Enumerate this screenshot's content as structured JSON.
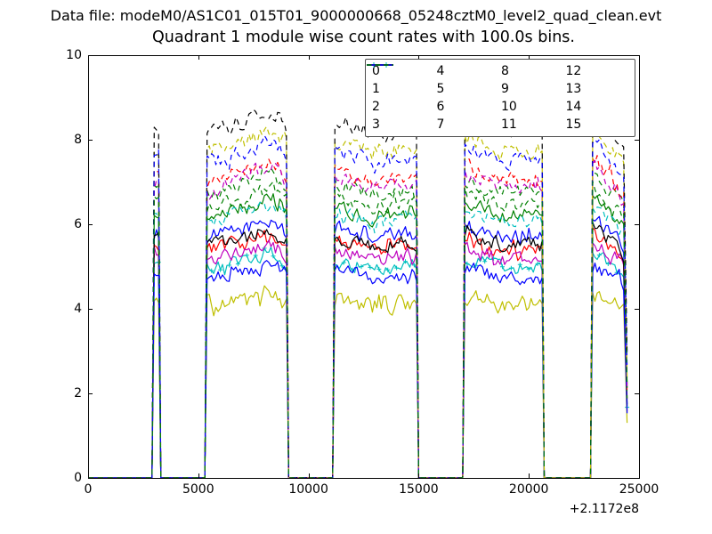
{
  "header": {
    "data_file": "Data file: modeM0/AS1C01_015T01_9000000668_05248cztM0_level2_quad_clean.evt"
  },
  "chart_data": {
    "type": "line",
    "title": "Quadrant 1 module wise count rates with 100.0s bins.",
    "xlabel": "",
    "ylabel": "",
    "xlim": [
      0,
      25000
    ],
    "ylim": [
      0,
      10
    ],
    "x_tick_labels": [
      "0",
      "5000",
      "10000",
      "15000",
      "20000",
      "25000"
    ],
    "y_tick_labels": [
      "0",
      "2",
      "4",
      "6",
      "8",
      "10"
    ],
    "x_offset_label": "+2.1172e8",
    "bin_size_label": "100.0s",
    "grid": false,
    "legend": {
      "location": "upper right",
      "columns": 4
    },
    "sample_step": 100,
    "on_intervals": [
      [
        2950,
        3250
      ],
      [
        5330,
        9010
      ],
      [
        11190,
        14940
      ],
      [
        17040,
        20640
      ],
      [
        22860,
        24420
      ]
    ],
    "interval_profiles": [
      [
        [
          0,
          1.0
        ],
        [
          1,
          1.0
        ]
      ],
      [
        [
          0,
          0.98
        ],
        [
          0.55,
          1.02
        ],
        [
          0.82,
          1.05
        ],
        [
          1,
          1.0
        ]
      ],
      [
        [
          0,
          1.02
        ],
        [
          0.45,
          0.98
        ],
        [
          1,
          1.0
        ]
      ],
      [
        [
          0,
          1.03
        ],
        [
          0.5,
          0.985
        ],
        [
          1,
          0.99
        ]
      ],
      [
        [
          0,
          1.06
        ],
        [
          0.5,
          1.0
        ],
        [
          1,
          0.93
        ]
      ]
    ],
    "end_cut": {
      "x": 24460,
      "level_fraction": 0.3
    },
    "series": [
      {
        "label": "0",
        "color": "#0000ff",
        "style": "solid",
        "level": 5.8,
        "noise": 0.26
      },
      {
        "label": "1",
        "color": "#008000",
        "style": "solid",
        "level": 6.3,
        "noise": 0.26
      },
      {
        "label": "2",
        "color": "#ff0000",
        "style": "solid",
        "level": 5.5,
        "noise": 0.26
      },
      {
        "label": "3",
        "color": "#00bfbf",
        "style": "solid",
        "level": 5.05,
        "noise": 0.24,
        "marker": "+"
      },
      {
        "label": "4",
        "color": "#bf00bf",
        "style": "solid",
        "level": 5.25,
        "noise": 0.26
      },
      {
        "label": "5",
        "color": "#bfbf00",
        "style": "solid",
        "level": 4.15,
        "noise": 0.32
      },
      {
        "label": "6",
        "color": "#000000",
        "style": "solid",
        "level": 5.6,
        "noise": 0.26
      },
      {
        "label": "7",
        "color": "#0000ff",
        "style": "solid",
        "level": 4.8,
        "noise": 0.26
      },
      {
        "label": "8",
        "color": "#008000",
        "style": "dashed",
        "level": 6.85,
        "noise": 0.26
      },
      {
        "label": "9",
        "color": "#ff0000",
        "style": "dashed",
        "level": 7.15,
        "noise": 0.26
      },
      {
        "label": "10",
        "color": "#00bfbf",
        "style": "dashed",
        "level": 6.15,
        "noise": 0.26
      },
      {
        "label": "11",
        "color": "#bf00bf",
        "style": "dashed",
        "level": 7.0,
        "noise": 0.26
      },
      {
        "label": "12",
        "color": "#bfbf00",
        "style": "dashed",
        "level": 7.85,
        "noise": 0.3
      },
      {
        "label": "13",
        "color": "#000000",
        "style": "dashed",
        "level": 8.3,
        "noise": 0.3
      },
      {
        "label": "14",
        "color": "#0000ff",
        "style": "dashed",
        "level": 7.6,
        "noise": 0.28
      },
      {
        "label": "15",
        "color": "#008000",
        "style": "dashed",
        "level": 6.55,
        "noise": 0.26
      }
    ]
  }
}
